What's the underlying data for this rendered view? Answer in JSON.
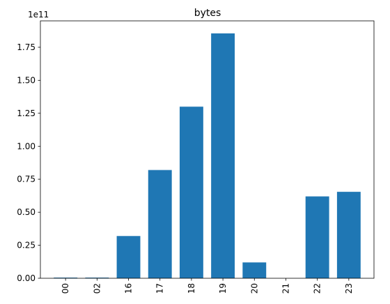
{
  "chart_data": {
    "type": "bar",
    "title": "bytes",
    "xlabel": "",
    "ylabel": "",
    "y_offset_label": "1e11",
    "ylim": [
      0,
      1.95
    ],
    "yticks": [
      0.0,
      0.25,
      0.5,
      0.75,
      1.0,
      1.25,
      1.5,
      1.75
    ],
    "ytick_labels": [
      "0.00",
      "0.25",
      "0.50",
      "0.75",
      "1.00",
      "1.25",
      "1.50",
      "1.75"
    ],
    "categories": [
      "00",
      "02",
      "16",
      "17",
      "18",
      "19",
      "20",
      "21",
      "22",
      "23"
    ],
    "values": [
      0.005,
      0.005,
      0.32,
      0.82,
      1.3,
      1.855,
      0.12,
      0.0,
      0.62,
      0.655
    ],
    "bar_color": "#1f77b4",
    "grid": false,
    "xtick_rotation": "vertical"
  }
}
